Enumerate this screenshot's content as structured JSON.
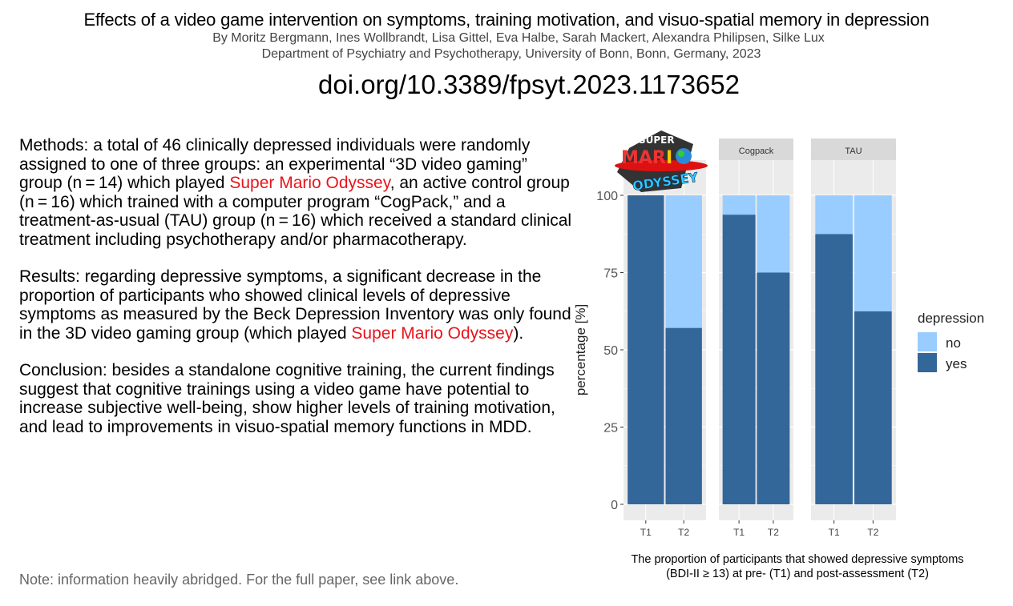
{
  "header": {
    "title": "Effects of a video game intervention on symptoms, training motivation, and visuo-spatial memory in depression",
    "authors": "By Moritz Bergmann, Ines Wollbrandt, Lisa Gittel, Eva Halbe, Sarah Mackert, Alexandra Philipsen, Silke Lux",
    "affiliation": "Department of Psychiatry and Psychotherapy, University of Bonn, Bonn, Germany, 2023",
    "doi": "doi.org/10.3389/fpsyt.2023.1173652"
  },
  "body": {
    "methods_a": "Methods: a total of 46 clinically depressed individuals were randomly assigned to one of three groups: an experimental “3D video gaming” group (n = 14) which played ",
    "methods_game": "Super Mario Odyssey",
    "methods_b": ", an active control group (n = 16) which trained with a computer program “CogPack,” and a treatment-as-usual (TAU) group (n = 16) which received a standard clinical treatment including psychotherapy and/or pharmacotherapy.",
    "results_a": "Results: regarding depressive symptoms, a significant decrease in the proportion of participants who showed clinical levels of depressive symptoms as measured by the Beck Depression Inventory was only found in the 3D video gaming group (which played ",
    "results_game": "Super Mario Odyssey",
    "results_b": ").",
    "conclusion": "Conclusion: besides a standalone cognitive training, the current findings suggest that cognitive trainings using a video game have potential to increase subjective well-being, show higher levels of training motivation, and lead to improvements in visuo-spatial memory functions in MDD.",
    "note": "Note: information heavily abridged. For the full paper, see link above.",
    "caption_1": "The proportion of participants that showed depressive symptoms",
    "caption_2": "(BDI-II ≥ 13) at pre- (T1) and post-assessment (T2)"
  },
  "logo": {
    "text": "SUPER MARIO ODYSSEY"
  },
  "colors": {
    "yes": "#336699",
    "no": "#99ccff",
    "panel": "#ebebeb",
    "strip": "#d9d9d9",
    "grid": "#ffffff",
    "accent": "#e8141b"
  },
  "chart_data": {
    "type": "bar",
    "stacked": true,
    "facets": [
      "Super Mario Odyssey",
      "Cogpack",
      "TAU"
    ],
    "facet_labels": [
      "",
      "Cogpack",
      "TAU"
    ],
    "categories": [
      "T1",
      "T2"
    ],
    "series": [
      {
        "name": "yes",
        "values": [
          [
            100,
            57.1
          ],
          [
            93.75,
            75
          ],
          [
            87.5,
            62.5
          ]
        ]
      },
      {
        "name": "no",
        "values": [
          [
            0,
            42.9
          ],
          [
            6.25,
            25
          ],
          [
            12.5,
            37.5
          ]
        ]
      }
    ],
    "ylabel": "percentage [%]",
    "xlabel": "",
    "ylim": [
      0,
      100
    ],
    "yticks": [
      0,
      25,
      50,
      75,
      100
    ],
    "legend": {
      "title": "depression",
      "entries": [
        "no",
        "yes"
      ],
      "position": "right"
    },
    "grid": true
  }
}
